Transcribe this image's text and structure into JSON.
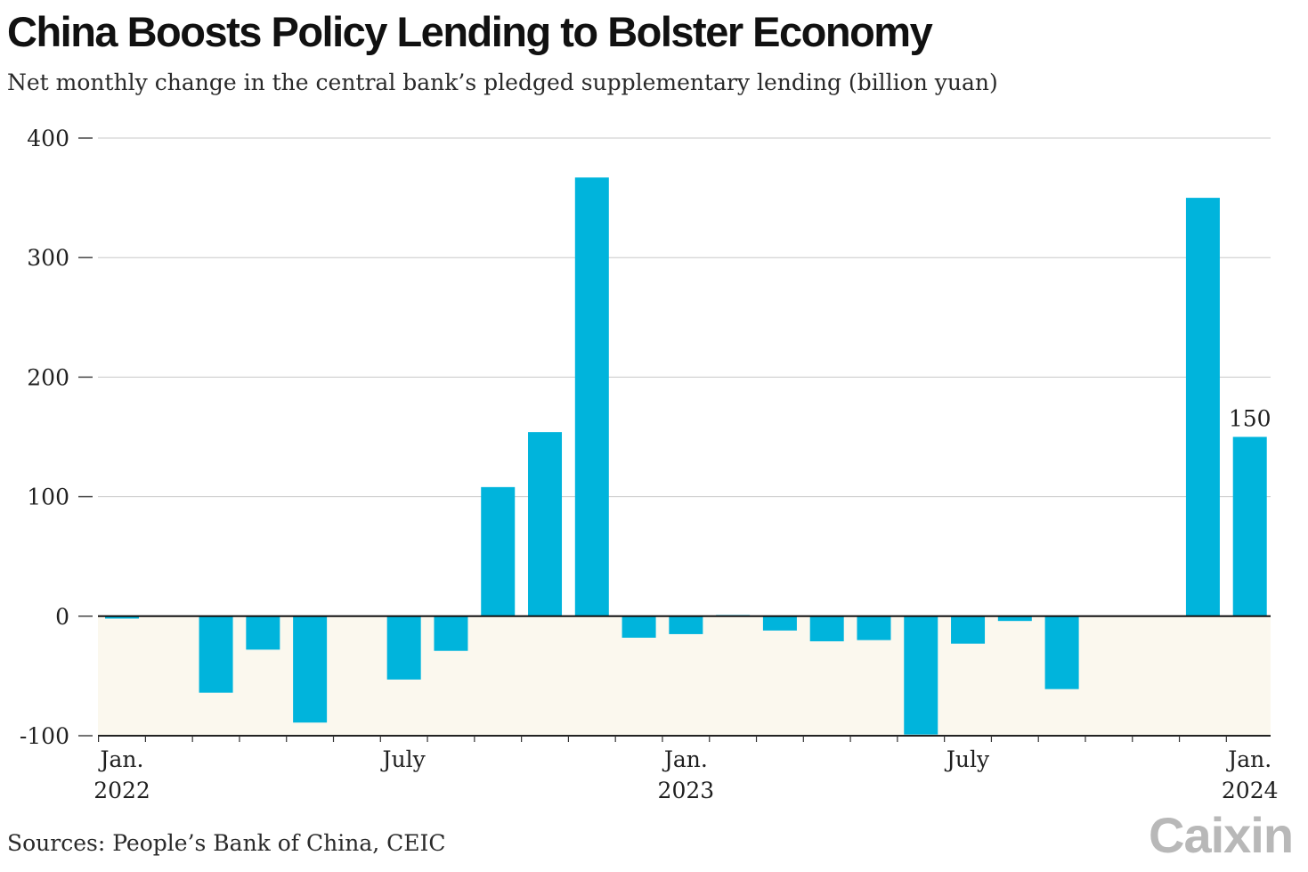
{
  "header": {
    "title": "China Boosts Policy Lending to Bolster Economy",
    "subtitle": "Net monthly change in the central bank’s pledged supplementary lending (billion yuan)"
  },
  "footer": {
    "source": "Sources: People’s Bank of China, CEIC",
    "logo": "Caixin"
  },
  "colors": {
    "bar": "#00b4dc",
    "negative_band": "#fbf8ee",
    "grid": "#c8c8c8",
    "zero_line": "#111111"
  },
  "chart_data": {
    "type": "bar",
    "categories": [
      "2022-01",
      "2022-02",
      "2022-03",
      "2022-04",
      "2022-05",
      "2022-06",
      "2022-07",
      "2022-08",
      "2022-09",
      "2022-10",
      "2022-11",
      "2022-12",
      "2023-01",
      "2023-02",
      "2023-03",
      "2023-04",
      "2023-05",
      "2023-06",
      "2023-07",
      "2023-08",
      "2023-09",
      "2023-10",
      "2023-11",
      "2023-12",
      "2024-01"
    ],
    "values": [
      -2,
      0,
      -64,
      -28,
      -89,
      0,
      -53,
      -29,
      108,
      154,
      367,
      -18,
      -15,
      1,
      -12,
      -21,
      -20,
      -99,
      -23,
      -4,
      -61,
      0,
      0,
      350,
      150
    ],
    "ylim": [
      -100,
      400
    ],
    "yticks": [
      -100,
      0,
      100,
      200,
      300,
      400
    ],
    "ytick_labels": [
      "-100",
      "0",
      "100",
      "200",
      "300",
      "400"
    ],
    "xtick_labels": [
      {
        "index": 0,
        "lines": [
          "Jan.",
          "2022"
        ]
      },
      {
        "index": 6,
        "lines": [
          "July"
        ]
      },
      {
        "index": 12,
        "lines": [
          "Jan.",
          "2023"
        ]
      },
      {
        "index": 18,
        "lines": [
          "July"
        ]
      },
      {
        "index": 24,
        "lines": [
          "Jan.",
          "2024"
        ]
      }
    ],
    "annotations": [
      {
        "index": 24,
        "text": "150"
      }
    ],
    "grid": true,
    "legend": "none"
  }
}
